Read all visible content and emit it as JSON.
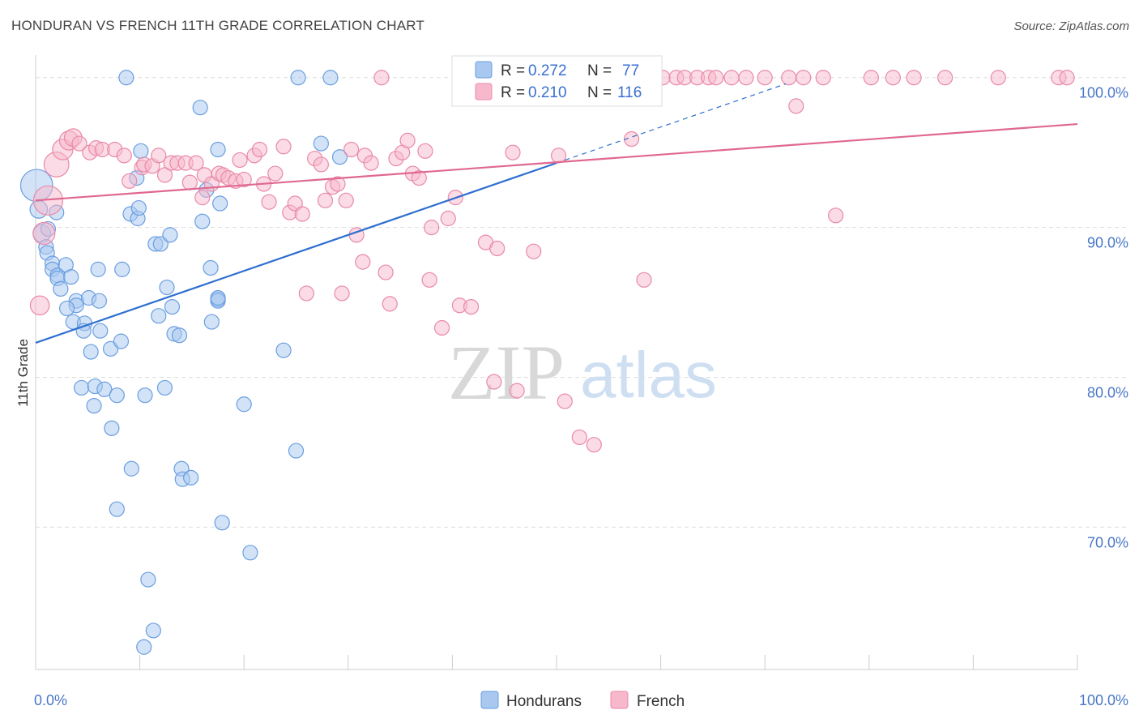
{
  "title": "HONDURAN VS FRENCH 11TH GRADE CORRELATION CHART",
  "source": "Source: ZipAtlas.com",
  "watermark": {
    "zip": "ZIP",
    "atlas": "atlas"
  },
  "colors": {
    "hondurans": "#a8c8f0",
    "hondurans_stroke": "#6a9ee0",
    "hondurans_line": "#2f6fd0",
    "french": "#f8b8cc",
    "french_stroke": "#e88aa8",
    "french_line": "#e06890",
    "grid": "#dddddd",
    "tick_text": "#4a78c8"
  },
  "chart_data": {
    "type": "scatter",
    "title": "HONDURAN VS FRENCH 11TH GRADE CORRELATION CHART",
    "xlabel": "",
    "ylabel": "11th Grade",
    "xlim": [
      0,
      100
    ],
    "ylim": [
      60.5,
      101.5
    ],
    "x_tick_labels": [
      "0.0%",
      "100.0%"
    ],
    "y_ticks": [
      70,
      80,
      90,
      100
    ],
    "y_tick_labels": [
      "70.0%",
      "80.0%",
      "90.0%",
      "100.0%"
    ],
    "legend": {
      "position": "top-center",
      "rows": [
        {
          "r_label": "R = ",
          "r_value": "0.272",
          "n_label": "N = ",
          "n_value": "77"
        },
        {
          "r_label": "R = ",
          "r_value": "0.210",
          "n_label": "N = ",
          "n_value": "116"
        }
      ]
    },
    "bottom_legend": [
      "Hondurans",
      "French"
    ],
    "series": [
      {
        "name": "Hondurans",
        "trend": {
          "x0": 0,
          "y0": 82.3,
          "x1": 50,
          "y1": 94.3,
          "dash_to_x": 72
        },
        "points": [
          [
            0.1,
            92.8,
            2.2
          ],
          [
            0.3,
            91.2,
            1.2
          ],
          [
            0.6,
            89.6,
            1.2
          ],
          [
            1.0,
            88.7,
            1
          ],
          [
            1.1,
            88.3,
            1
          ],
          [
            1.6,
            87.6,
            1
          ],
          [
            1.6,
            87.2,
            1
          ],
          [
            2.1,
            86.8,
            1
          ],
          [
            2.1,
            86.6,
            1
          ],
          [
            2.4,
            85.9,
            1
          ],
          [
            2.9,
            87.5,
            1
          ],
          [
            3.4,
            86.7,
            1
          ],
          [
            3.9,
            85.1,
            1
          ],
          [
            3.9,
            84.8,
            1
          ],
          [
            3.0,
            84.6,
            1
          ],
          [
            3.6,
            83.7,
            1
          ],
          [
            4.7,
            83.6,
            1
          ],
          [
            4.6,
            83.1,
            1
          ],
          [
            5.1,
            85.3,
            1
          ],
          [
            6.1,
            85.1,
            1
          ],
          [
            6.2,
            83.1,
            1
          ],
          [
            7.2,
            81.9,
            1
          ],
          [
            5.3,
            81.7,
            1
          ],
          [
            8.2,
            82.4,
            1
          ],
          [
            4.4,
            79.3,
            1
          ],
          [
            5.7,
            79.4,
            1
          ],
          [
            6.6,
            79.2,
            1
          ],
          [
            7.8,
            78.8,
            1
          ],
          [
            5.6,
            78.1,
            1
          ],
          [
            7.3,
            76.6,
            1
          ],
          [
            9.2,
            73.9,
            1
          ],
          [
            7.8,
            71.2,
            1
          ],
          [
            10.8,
            66.5,
            1
          ],
          [
            11.3,
            63.1,
            1
          ],
          [
            10.4,
            62.0,
            1
          ],
          [
            8.3,
            87.2,
            1
          ],
          [
            6.0,
            87.2,
            1
          ],
          [
            8.7,
            100,
            1
          ],
          [
            9.7,
            93.3,
            1
          ],
          [
            9.1,
            90.9,
            1
          ],
          [
            9.8,
            90.6,
            1
          ],
          [
            9.9,
            91.3,
            1
          ],
          [
            10.1,
            95.1,
            1
          ],
          [
            11.5,
            88.9,
            1
          ],
          [
            12.0,
            88.9,
            1
          ],
          [
            12.9,
            89.5,
            1
          ],
          [
            12.6,
            86.0,
            1
          ],
          [
            11.8,
            84.1,
            1
          ],
          [
            13.1,
            84.7,
            1
          ],
          [
            13.3,
            82.9,
            1
          ],
          [
            13.8,
            82.8,
            1
          ],
          [
            10.5,
            78.8,
            1
          ],
          [
            12.4,
            79.3,
            1
          ],
          [
            14.0,
            73.9,
            1
          ],
          [
            14.1,
            73.2,
            1
          ],
          [
            14.9,
            73.3,
            1
          ],
          [
            15.8,
            98.0,
            1
          ],
          [
            16.4,
            92.5,
            1
          ],
          [
            16.0,
            90.4,
            1
          ],
          [
            16.8,
            87.3,
            1
          ],
          [
            17.5,
            95.2,
            1
          ],
          [
            17.7,
            91.6,
            1
          ],
          [
            17.5,
            85.2,
            1
          ],
          [
            16.9,
            83.7,
            1
          ],
          [
            17.5,
            85.1,
            1
          ],
          [
            17.5,
            85.3,
            1
          ],
          [
            17.9,
            70.3,
            1
          ],
          [
            20.0,
            78.2,
            1
          ],
          [
            20.6,
            68.3,
            1
          ],
          [
            25.2,
            100,
            1
          ],
          [
            23.8,
            81.8,
            1
          ],
          [
            25.0,
            75.1,
            1
          ],
          [
            27.4,
            95.6,
            1
          ],
          [
            28.3,
            100,
            1
          ],
          [
            29.2,
            94.7,
            1
          ],
          [
            2.0,
            91.0,
            1
          ],
          [
            1.2,
            89.9,
            1
          ]
        ]
      },
      {
        "name": "French",
        "trend": {
          "x0": 0,
          "y0": 91.8,
          "x1": 100,
          "y1": 96.9
        },
        "points": [
          [
            0.4,
            84.8,
            1.3
          ],
          [
            0.8,
            89.6,
            1.5
          ],
          [
            1.2,
            91.8,
            2.0
          ],
          [
            2.0,
            94.2,
            1.7
          ],
          [
            2.6,
            95.2,
            1.4
          ],
          [
            3.2,
            95.8,
            1.3
          ],
          [
            3.6,
            96.0,
            1.2
          ],
          [
            4.2,
            95.6,
            1
          ],
          [
            5.2,
            95.0,
            1
          ],
          [
            5.8,
            95.3,
            1
          ],
          [
            6.4,
            95.2,
            1
          ],
          [
            7.6,
            95.2,
            1
          ],
          [
            8.5,
            94.8,
            1
          ],
          [
            9.0,
            93.1,
            1
          ],
          [
            10.2,
            94.0,
            1
          ],
          [
            10.4,
            94.2,
            1
          ],
          [
            11.2,
            94.1,
            1
          ],
          [
            11.8,
            94.8,
            1
          ],
          [
            12.4,
            93.5,
            1
          ],
          [
            13.0,
            94.3,
            1
          ],
          [
            13.6,
            94.3,
            1
          ],
          [
            14.4,
            94.3,
            1
          ],
          [
            14.8,
            93.0,
            1
          ],
          [
            15.4,
            94.3,
            1
          ],
          [
            16.2,
            93.5,
            1
          ],
          [
            16.0,
            92.0,
            1
          ],
          [
            16.9,
            92.9,
            1
          ],
          [
            17.6,
            93.6,
            1
          ],
          [
            18.0,
            93.5,
            1
          ],
          [
            18.5,
            93.3,
            1
          ],
          [
            19.2,
            93.1,
            1
          ],
          [
            19.6,
            94.5,
            1
          ],
          [
            20.0,
            93.2,
            1
          ],
          [
            21.0,
            94.8,
            1
          ],
          [
            21.5,
            95.2,
            1
          ],
          [
            21.9,
            92.9,
            1
          ],
          [
            22.4,
            91.7,
            1
          ],
          [
            23.0,
            93.6,
            1
          ],
          [
            23.8,
            95.4,
            1
          ],
          [
            24.4,
            91.0,
            1
          ],
          [
            24.9,
            91.6,
            1
          ],
          [
            25.6,
            90.9,
            1
          ],
          [
            26.0,
            85.6,
            1
          ],
          [
            26.8,
            94.6,
            1
          ],
          [
            27.4,
            94.2,
            1
          ],
          [
            27.8,
            91.8,
            1
          ],
          [
            28.5,
            92.7,
            1
          ],
          [
            29.0,
            92.9,
            1
          ],
          [
            29.4,
            85.6,
            1
          ],
          [
            29.8,
            91.8,
            1
          ],
          [
            30.3,
            95.2,
            1
          ],
          [
            30.8,
            89.5,
            1
          ],
          [
            31.4,
            87.7,
            1
          ],
          [
            31.6,
            94.8,
            1
          ],
          [
            32.2,
            94.3,
            1
          ],
          [
            33.2,
            100,
            1
          ],
          [
            33.6,
            87.0,
            1
          ],
          [
            34.0,
            84.9,
            1
          ],
          [
            34.6,
            94.6,
            1
          ],
          [
            35.2,
            95.0,
            1
          ],
          [
            35.7,
            95.8,
            1
          ],
          [
            36.2,
            93.6,
            1
          ],
          [
            36.8,
            93.3,
            1
          ],
          [
            37.4,
            95.1,
            1
          ],
          [
            37.8,
            86.5,
            1
          ],
          [
            38.0,
            90.0,
            1
          ],
          [
            39.0,
            83.3,
            1
          ],
          [
            39.6,
            90.6,
            1
          ],
          [
            40.3,
            92.0,
            1
          ],
          [
            40.7,
            84.8,
            1
          ],
          [
            41.2,
            100,
            1
          ],
          [
            41.8,
            84.7,
            1
          ],
          [
            42.7,
            100,
            1
          ],
          [
            43.2,
            89.0,
            1
          ],
          [
            44.0,
            79.7,
            1
          ],
          [
            44.3,
            88.6,
            1
          ],
          [
            45.7,
            100,
            1
          ],
          [
            45.8,
            95.0,
            1
          ],
          [
            46.2,
            79.1,
            1
          ],
          [
            47.3,
            100,
            1
          ],
          [
            47.8,
            88.4,
            1
          ],
          [
            49.1,
            100,
            1
          ],
          [
            49.8,
            100,
            1
          ],
          [
            50.2,
            94.8,
            1
          ],
          [
            50.8,
            78.4,
            1
          ],
          [
            50.8,
            100,
            1
          ],
          [
            52.2,
            76.0,
            1
          ],
          [
            52.6,
            100,
            1
          ],
          [
            53.6,
            75.5,
            1
          ],
          [
            54.6,
            100,
            1
          ],
          [
            55.9,
            100,
            1
          ],
          [
            56.5,
            100,
            1
          ],
          [
            57.2,
            95.9,
            1
          ],
          [
            58.0,
            100,
            1
          ],
          [
            58.4,
            86.5,
            1
          ],
          [
            60.2,
            100,
            1
          ],
          [
            61.5,
            100,
            1
          ],
          [
            62.3,
            100,
            1
          ],
          [
            63.5,
            100,
            1
          ],
          [
            64.6,
            100,
            1
          ],
          [
            65.3,
            100,
            1
          ],
          [
            66.8,
            100,
            1
          ],
          [
            68.2,
            100,
            1
          ],
          [
            70.0,
            100,
            1
          ],
          [
            72.3,
            100,
            1
          ],
          [
            73.0,
            98.1,
            1
          ],
          [
            73.7,
            100,
            1
          ],
          [
            75.6,
            100,
            1
          ],
          [
            80.2,
            100,
            1
          ],
          [
            82.3,
            100,
            1
          ],
          [
            84.3,
            100,
            1
          ],
          [
            87.3,
            100,
            1
          ],
          [
            92.4,
            100,
            1
          ],
          [
            98.2,
            100,
            1
          ],
          [
            99.0,
            100,
            1
          ],
          [
            76.8,
            90.8,
            1
          ]
        ]
      }
    ]
  }
}
